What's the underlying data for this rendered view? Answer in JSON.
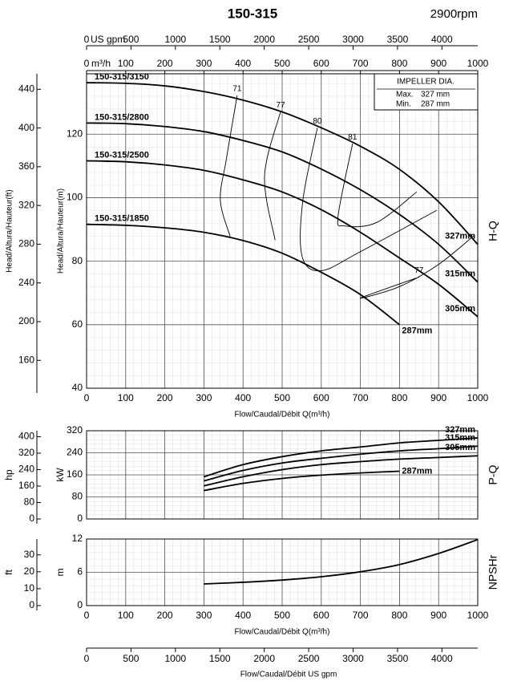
{
  "chart_data": [
    {
      "type": "line",
      "title": "150-315",
      "subtitle": "2900rpm",
      "side_label": "H-Q",
      "xlabel": "Flow/Caudal/Débit Q(m³/h)",
      "xlim": [
        0,
        1000
      ],
      "xticks": [
        0,
        100,
        200,
        300,
        400,
        500,
        600,
        700,
        800,
        900,
        1000
      ],
      "xtick_labels": true,
      "x3label": "m³/h",
      "x2label": "US gpm",
      "x2lim": [
        0,
        4403
      ],
      "x2ticks": [
        0,
        500,
        1000,
        1500,
        2000,
        2500,
        3000,
        3500,
        4000
      ],
      "ylabel": "Head/Altura/Hauteur(m)",
      "ylim": [
        40,
        139
      ],
      "yticks": [
        40,
        60,
        80,
        100,
        120
      ],
      "y2label": "Head/Altura/Hauteur(ft)",
      "y2lim": [
        131.2,
        456
      ],
      "y2ticks": [
        160,
        200,
        240,
        280,
        320,
        360,
        400,
        440
      ],
      "grid": true,
      "x": [
        0,
        100,
        200,
        300,
        400,
        500,
        600,
        700,
        800,
        900,
        1000
      ],
      "series": [
        {
          "name": "327mm",
          "label": "150-315/3150",
          "color": "#000000",
          "values": [
            136.2,
            136.0,
            135.2,
            133.4,
            130.7,
            127.0,
            122.0,
            116.2,
            108.9,
            98.7,
            85.3
          ]
        },
        {
          "name": "315mm",
          "label": "150-315/2800",
          "color": "#000000",
          "values": [
            123.5,
            123.3,
            122.4,
            120.8,
            118.0,
            114.4,
            109.0,
            102.5,
            94.7,
            85.3,
            73.4
          ]
        },
        {
          "name": "305mm",
          "label": "150-315/2500",
          "color": "#000000",
          "values": [
            111.6,
            111.3,
            110.3,
            108.6,
            105.6,
            101.8,
            96.2,
            89.1,
            81.0,
            72.7,
            62.5
          ]
        },
        {
          "name": "287mm",
          "label": "150-315/1850",
          "color": "#000000",
          "values": [
            91.6,
            91.3,
            90.5,
            89.1,
            86.5,
            82.5,
            76.5,
            69.5,
            60.0,
            null,
            null
          ]
        }
      ],
      "efficiency": [
        {
          "label": "71",
          "x": [
            385,
            357,
            342,
            367
          ],
          "y": [
            132.2,
            111.9,
            99.2,
            87.8
          ]
        },
        {
          "label": "77",
          "x": [
            496,
            455,
            482
          ],
          "y": [
            127.1,
            106.8,
            86.6
          ]
        },
        {
          "label": "80",
          "x": [
            590,
            553,
            551,
            600,
            700,
            895
          ],
          "y": [
            122.0,
            99.2,
            81.5,
            77.0,
            83.0,
            96.0
          ]
        },
        {
          "label": "81",
          "x": [
            680,
            643,
            660,
            742,
            844
          ],
          "y": [
            117.0,
            94.2,
            91.1,
            92.2,
            101.8
          ]
        },
        {
          "label": "77",
          "x": [
            850,
            700,
            800,
            900,
            990
          ],
          "y": [
            75.0,
            68.4,
            72.0,
            79.0,
            88.0
          ]
        }
      ],
      "impeller_box": {
        "title": "IMPELLER DIA.",
        "rows": [
          [
            "Max.",
            "327 mm"
          ],
          [
            "Min.",
            "287 mm"
          ]
        ]
      }
    },
    {
      "type": "line",
      "side_label": "P-Q",
      "xlim": [
        0,
        1000
      ],
      "xticks": [
        0,
        100,
        200,
        300,
        400,
        500,
        600,
        700,
        800,
        900,
        1000
      ],
      "xtick_labels": false,
      "ylabel": "kW",
      "ylim": [
        0,
        320
      ],
      "yticks": [
        0,
        80,
        160,
        240,
        320
      ],
      "y2label": "hp",
      "y2lim": [
        0,
        429.1
      ],
      "y2ticks": [
        0,
        80,
        160,
        240,
        320,
        400
      ],
      "grid": true,
      "x": [
        300,
        400,
        500,
        600,
        700,
        800,
        900,
        1000
      ],
      "series": [
        {
          "name": "327mm",
          "color": "#000000",
          "values": [
            153,
            197,
            226,
            247,
            261,
            276,
            285,
            294
          ]
        },
        {
          "name": "315mm",
          "color": "#000000",
          "values": [
            138,
            176,
            203,
            220,
            235,
            247,
            255,
            264
          ]
        },
        {
          "name": "305mm",
          "color": "#000000",
          "values": [
            120,
            153,
            179,
            197,
            208,
            217,
            223,
            229
          ]
        },
        {
          "name": "287mm",
          "color": "#000000",
          "values": [
            103,
            129,
            147,
            159,
            167,
            173,
            null,
            null
          ]
        }
      ]
    },
    {
      "type": "line",
      "side_label": "NPSHr",
      "xlabel": "Flow/Caudal/Débit Q(m³/h)",
      "xlim": [
        0,
        1000
      ],
      "xticks": [
        0,
        100,
        200,
        300,
        400,
        500,
        600,
        700,
        800,
        900,
        1000
      ],
      "xtick_labels": true,
      "x2label": "Flow/Caudal/Débit  US gpm",
      "x2lim": [
        0,
        4403
      ],
      "x2ticks": [
        0,
        500,
        1000,
        1500,
        2000,
        2500,
        3000,
        3500,
        4000
      ],
      "ylabel": "m",
      "ylim": [
        0,
        12
      ],
      "yticks": [
        0,
        6,
        12
      ],
      "y2label": "ft",
      "y2lim": [
        0,
        39.37
      ],
      "y2ticks": [
        0,
        10,
        20,
        30
      ],
      "grid": true,
      "x": [
        300,
        400,
        500,
        600,
        700,
        800,
        900,
        1000
      ],
      "series": [
        {
          "color": "#000000",
          "values": [
            3.9,
            4.2,
            4.6,
            5.2,
            6.1,
            7.4,
            9.4,
            11.9
          ]
        }
      ]
    }
  ]
}
